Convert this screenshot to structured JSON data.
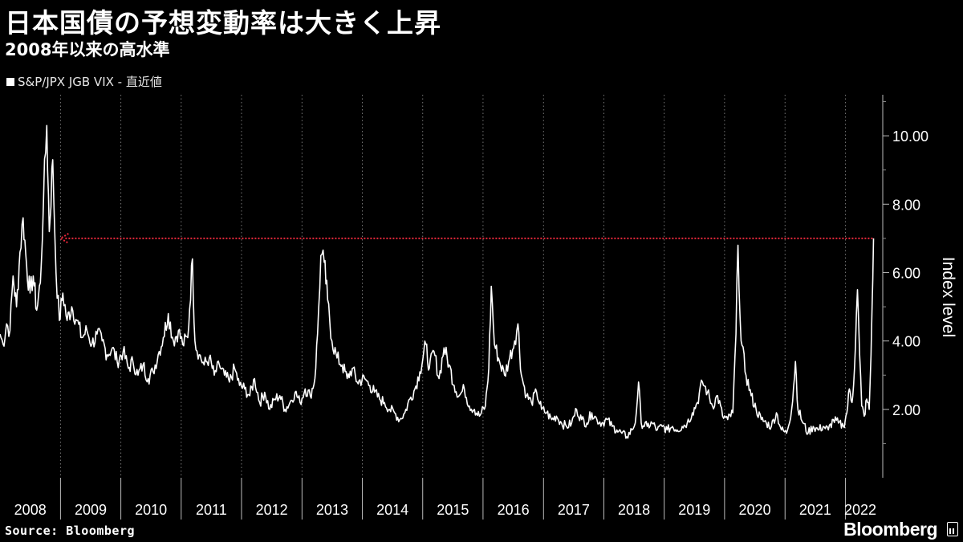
{
  "header": {
    "title": "日本国債の予想変動率は大きく上昇",
    "subtitle": "2008年以来の高水準"
  },
  "legend": {
    "label": "S&P/JPX JGB VIX - 直近値"
  },
  "footer": {
    "source": "Source: Bloomberg",
    "brand": "Bloomberg"
  },
  "colors": {
    "background": "#000000",
    "series": "#ffffff",
    "reference_line": "#e8283c",
    "grid": "#777777"
  },
  "chart_data": {
    "type": "line",
    "title": "日本国債の予想変動率は大きく上昇",
    "subtitle": "2008年以来の高水準",
    "ylabel": "Index level",
    "xlabel": "",
    "ylim": [
      0,
      11.2
    ],
    "y_ticks": [
      "2.00",
      "4.00",
      "6.00",
      "8.00",
      "10.00"
    ],
    "y_tick_values": [
      2,
      4,
      6,
      8,
      10
    ],
    "x_range": [
      "2008-01-01",
      "2022-08-15"
    ],
    "x_tick_labels": [
      "2008",
      "2009",
      "2010",
      "2011",
      "2012",
      "2013",
      "2014",
      "2015",
      "2016",
      "2017",
      "2018",
      "2019",
      "2020",
      "2021",
      "2022"
    ],
    "grid": true,
    "legend_position": "top-left",
    "reference_line": {
      "value": 7.0,
      "style": "dotted",
      "from": "2009-01-01",
      "to": "2022-06-20"
    },
    "series": [
      {
        "name": "S&P/JPX JGB VIX - 直近値",
        "points": [
          [
            "2008-01-01",
            4.2
          ],
          [
            "2008-01-20",
            3.9
          ],
          [
            "2008-02-10",
            4.5
          ],
          [
            "2008-03-01",
            4.3
          ],
          [
            "2008-03-20",
            5.9
          ],
          [
            "2008-04-10",
            5.0
          ],
          [
            "2008-05-01",
            6.6
          ],
          [
            "2008-05-20",
            7.6
          ],
          [
            "2008-06-10",
            6.2
          ],
          [
            "2008-07-01",
            5.4
          ],
          [
            "2008-07-20",
            5.9
          ],
          [
            "2008-08-10",
            4.9
          ],
          [
            "2008-09-01",
            5.7
          ],
          [
            "2008-09-20",
            8.1
          ],
          [
            "2008-10-10",
            10.3
          ],
          [
            "2008-10-25",
            7.2
          ],
          [
            "2008-11-15",
            9.3
          ],
          [
            "2008-12-05",
            6.0
          ],
          [
            "2008-12-25",
            4.6
          ],
          [
            "2009-01-15",
            5.4
          ],
          [
            "2009-02-10",
            4.6
          ],
          [
            "2009-03-10",
            5.0
          ],
          [
            "2009-04-10",
            4.6
          ],
          [
            "2009-05-10",
            4.1
          ],
          [
            "2009-06-10",
            4.3
          ],
          [
            "2009-07-10",
            3.9
          ],
          [
            "2009-08-10",
            4.2
          ],
          [
            "2009-09-10",
            4.0
          ],
          [
            "2009-10-10",
            3.6
          ],
          [
            "2009-11-10",
            3.8
          ],
          [
            "2009-12-10",
            3.4
          ],
          [
            "2010-01-15",
            3.7
          ],
          [
            "2010-02-15",
            3.2
          ],
          [
            "2010-03-15",
            3.4
          ],
          [
            "2010-04-15",
            3.0
          ],
          [
            "2010-05-15",
            3.3
          ],
          [
            "2010-06-15",
            2.9
          ],
          [
            "2010-07-15",
            3.1
          ],
          [
            "2010-08-15",
            3.6
          ],
          [
            "2010-09-15",
            4.1
          ],
          [
            "2010-10-15",
            4.8
          ],
          [
            "2010-11-15",
            4.0
          ],
          [
            "2010-12-15",
            4.3
          ],
          [
            "2011-01-10",
            3.9
          ],
          [
            "2011-02-10",
            4.1
          ],
          [
            "2011-03-10",
            6.4
          ],
          [
            "2011-03-25",
            4.0
          ],
          [
            "2011-04-20",
            3.6
          ],
          [
            "2011-05-20",
            3.3
          ],
          [
            "2011-06-20",
            3.5
          ],
          [
            "2011-07-20",
            3.0
          ],
          [
            "2011-08-20",
            3.3
          ],
          [
            "2011-09-20",
            3.0
          ],
          [
            "2011-10-20",
            2.8
          ],
          [
            "2011-11-20",
            3.2
          ],
          [
            "2011-12-20",
            2.7
          ],
          [
            "2012-01-20",
            2.6
          ],
          [
            "2012-02-20",
            2.4
          ],
          [
            "2012-03-20",
            2.9
          ],
          [
            "2012-04-20",
            2.2
          ],
          [
            "2012-05-20",
            2.5
          ],
          [
            "2012-06-20",
            2.0
          ],
          [
            "2012-07-20",
            2.3
          ],
          [
            "2012-08-20",
            2.4
          ],
          [
            "2012-09-20",
            2.0
          ],
          [
            "2012-10-20",
            2.2
          ],
          [
            "2012-11-20",
            2.5
          ],
          [
            "2012-12-20",
            2.2
          ],
          [
            "2013-01-20",
            2.6
          ],
          [
            "2013-02-20",
            2.4
          ],
          [
            "2013-03-20",
            2.9
          ],
          [
            "2013-04-05",
            4.2
          ],
          [
            "2013-04-25",
            6.5
          ],
          [
            "2013-05-15",
            6.3
          ],
          [
            "2013-06-05",
            5.2
          ],
          [
            "2013-07-01",
            4.0
          ],
          [
            "2013-08-01",
            3.5
          ],
          [
            "2013-09-01",
            3.3
          ],
          [
            "2013-10-01",
            2.9
          ],
          [
            "2013-11-01",
            3.2
          ],
          [
            "2013-12-01",
            2.8
          ],
          [
            "2014-01-15",
            2.9
          ],
          [
            "2014-02-15",
            2.7
          ],
          [
            "2014-03-15",
            2.5
          ],
          [
            "2014-04-15",
            2.3
          ],
          [
            "2014-05-15",
            2.2
          ],
          [
            "2014-06-15",
            2.0
          ],
          [
            "2014-07-15",
            1.9
          ],
          [
            "2014-08-15",
            1.7
          ],
          [
            "2014-09-15",
            1.9
          ],
          [
            "2014-10-15",
            2.3
          ],
          [
            "2014-11-15",
            2.6
          ],
          [
            "2014-12-15",
            3.1
          ],
          [
            "2015-01-20",
            3.9
          ],
          [
            "2015-02-10",
            3.2
          ],
          [
            "2015-03-10",
            3.7
          ],
          [
            "2015-04-10",
            2.9
          ],
          [
            "2015-05-10",
            3.8
          ],
          [
            "2015-06-10",
            3.3
          ],
          [
            "2015-07-10",
            2.7
          ],
          [
            "2015-08-10",
            2.4
          ],
          [
            "2015-09-10",
            2.6
          ],
          [
            "2015-10-10",
            2.1
          ],
          [
            "2015-11-10",
            2.0
          ],
          [
            "2015-12-10",
            1.8
          ],
          [
            "2016-01-15",
            2.1
          ],
          [
            "2016-02-05",
            3.2
          ],
          [
            "2016-02-20",
            5.6
          ],
          [
            "2016-03-10",
            3.9
          ],
          [
            "2016-04-10",
            3.4
          ],
          [
            "2016-05-10",
            3.0
          ],
          [
            "2016-06-10",
            3.5
          ],
          [
            "2016-07-10",
            4.0
          ],
          [
            "2016-07-30",
            4.5
          ],
          [
            "2016-08-20",
            3.0
          ],
          [
            "2016-09-20",
            2.4
          ],
          [
            "2016-10-20",
            2.2
          ],
          [
            "2016-11-20",
            2.5
          ],
          [
            "2016-12-20",
            2.0
          ],
          [
            "2017-01-20",
            1.9
          ],
          [
            "2017-02-20",
            1.7
          ],
          [
            "2017-03-20",
            1.8
          ],
          [
            "2017-04-20",
            1.6
          ],
          [
            "2017-05-20",
            1.5
          ],
          [
            "2017-06-20",
            1.6
          ],
          [
            "2017-07-20",
            2.0
          ],
          [
            "2017-08-20",
            1.7
          ],
          [
            "2017-09-20",
            1.6
          ],
          [
            "2017-10-20",
            1.9
          ],
          [
            "2017-11-20",
            1.7
          ],
          [
            "2017-12-20",
            1.6
          ],
          [
            "2018-01-20",
            1.7
          ],
          [
            "2018-02-20",
            1.5
          ],
          [
            "2018-03-20",
            1.4
          ],
          [
            "2018-04-20",
            1.3
          ],
          [
            "2018-05-20",
            1.2
          ],
          [
            "2018-06-20",
            1.4
          ],
          [
            "2018-07-10",
            1.6
          ],
          [
            "2018-07-30",
            2.8
          ],
          [
            "2018-08-15",
            1.6
          ],
          [
            "2018-09-20",
            1.5
          ],
          [
            "2018-10-20",
            1.6
          ],
          [
            "2018-11-20",
            1.4
          ],
          [
            "2018-12-20",
            1.5
          ],
          [
            "2019-01-20",
            1.4
          ],
          [
            "2019-02-20",
            1.5
          ],
          [
            "2019-03-20",
            1.4
          ],
          [
            "2019-04-20",
            1.5
          ],
          [
            "2019-05-20",
            1.6
          ],
          [
            "2019-06-20",
            1.9
          ],
          [
            "2019-07-20",
            2.2
          ],
          [
            "2019-08-20",
            2.8
          ],
          [
            "2019-09-20",
            2.5
          ],
          [
            "2019-10-20",
            2.1
          ],
          [
            "2019-11-20",
            2.4
          ],
          [
            "2019-12-20",
            1.8
          ],
          [
            "2020-01-20",
            1.7
          ],
          [
            "2020-02-20",
            1.9
          ],
          [
            "2020-03-10",
            4.2
          ],
          [
            "2020-03-22",
            6.8
          ],
          [
            "2020-04-10",
            4.0
          ],
          [
            "2020-05-10",
            3.0
          ],
          [
            "2020-06-10",
            2.4
          ],
          [
            "2020-07-10",
            2.0
          ],
          [
            "2020-08-10",
            1.7
          ],
          [
            "2020-09-10",
            1.6
          ],
          [
            "2020-10-10",
            1.5
          ],
          [
            "2020-11-10",
            1.9
          ],
          [
            "2020-12-10",
            1.4
          ],
          [
            "2021-01-10",
            1.3
          ],
          [
            "2021-02-10",
            2.0
          ],
          [
            "2021-03-05",
            3.4
          ],
          [
            "2021-03-20",
            2.0
          ],
          [
            "2021-04-20",
            1.6
          ],
          [
            "2021-05-20",
            1.3
          ],
          [
            "2021-06-20",
            1.5
          ],
          [
            "2021-07-20",
            1.4
          ],
          [
            "2021-08-20",
            1.5
          ],
          [
            "2021-09-20",
            1.4
          ],
          [
            "2021-10-20",
            1.7
          ],
          [
            "2021-11-20",
            1.6
          ],
          [
            "2021-12-20",
            1.5
          ],
          [
            "2022-01-10",
            1.9
          ],
          [
            "2022-01-25",
            2.6
          ],
          [
            "2022-02-10",
            2.2
          ],
          [
            "2022-02-25",
            3.2
          ],
          [
            "2022-03-15",
            5.5
          ],
          [
            "2022-03-28",
            3.6
          ],
          [
            "2022-04-10",
            2.1
          ],
          [
            "2022-04-25",
            1.8
          ],
          [
            "2022-05-10",
            2.3
          ],
          [
            "2022-05-25",
            2.0
          ],
          [
            "2022-06-05",
            3.6
          ],
          [
            "2022-06-12",
            5.1
          ],
          [
            "2022-06-20",
            7.0
          ]
        ]
      }
    ]
  }
}
